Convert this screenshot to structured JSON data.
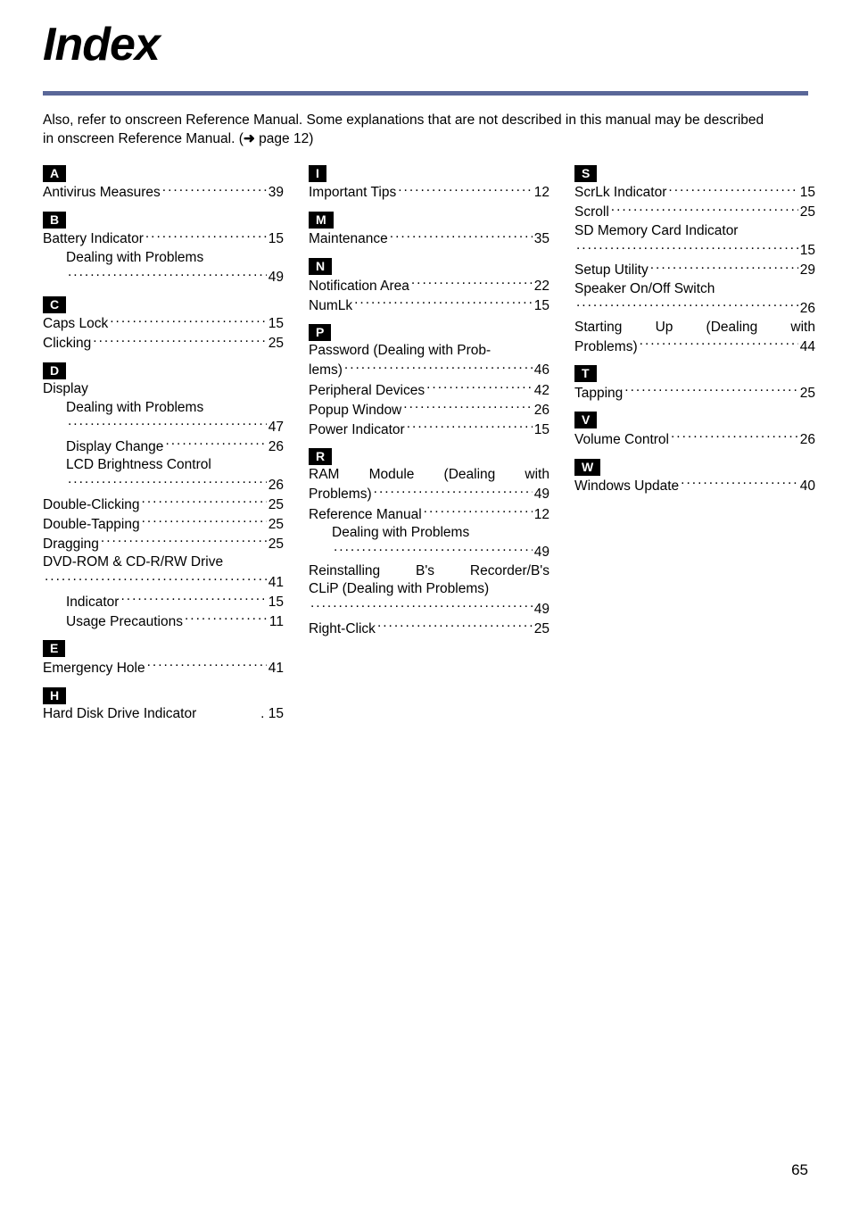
{
  "title": "Index",
  "intro_line1": "Also, refer to onscreen Reference Manual. Some explanations that are not described in this manual may be described",
  "intro_line2_prefix": "in onscreen Reference Manual. (",
  "intro_line2_suffix": " page 12)",
  "page_number": "65",
  "sections": {
    "A": {
      "letter": "A",
      "entries": [
        {
          "text": "Antivirus Measures",
          "page": "39"
        }
      ]
    },
    "B": {
      "letter": "B",
      "entries": [
        {
          "text": "Battery Indicator",
          "page": "15"
        },
        {
          "text": "Dealing with Problems",
          "page": "",
          "sub": true,
          "nopage": true
        },
        {
          "text": "",
          "page": "49",
          "sub": true,
          "contline": true
        }
      ]
    },
    "C": {
      "letter": "C",
      "entries": [
        {
          "text": "Caps Lock",
          "page": "15"
        },
        {
          "text": "Clicking",
          "page": "25"
        }
      ]
    },
    "D": {
      "letter": "D",
      "entries": [
        {
          "text": "Display",
          "page": "",
          "nopage": true
        },
        {
          "text": "Dealing with Problems",
          "page": "",
          "sub": true,
          "nopage": true
        },
        {
          "text": "",
          "page": "47",
          "sub": true,
          "contline": true
        },
        {
          "text": "Display Change",
          "page": "26",
          "sub": true
        },
        {
          "text": "LCD Brightness Control",
          "page": "",
          "sub": true,
          "nopage": true
        },
        {
          "text": "",
          "page": "26",
          "sub": true,
          "contline": true
        },
        {
          "text": "Double-Clicking",
          "page": "25"
        },
        {
          "text": "Double-Tapping",
          "page": "25"
        },
        {
          "text": "Dragging",
          "page": "25"
        },
        {
          "text": "DVD-ROM & CD-R/RW Drive",
          "page": "",
          "nopage": true
        },
        {
          "text": "",
          "page": "41",
          "contline": true
        },
        {
          "text": "Indicator",
          "page": "15",
          "sub": true
        },
        {
          "text": "Usage Precautions",
          "page": "11",
          "sub": true
        }
      ]
    },
    "E": {
      "letter": "E",
      "entries": [
        {
          "text": "Emergency Hole",
          "page": "41"
        }
      ]
    },
    "H": {
      "letter": "H",
      "entries": [
        {
          "text": "Hard Disk Drive Indicator",
          "page": "15",
          "tight": true
        }
      ]
    },
    "I": {
      "letter": "I",
      "entries": [
        {
          "text": "Important Tips",
          "page": "12"
        }
      ]
    },
    "M": {
      "letter": "M",
      "entries": [
        {
          "text": "Maintenance",
          "page": "35"
        }
      ]
    },
    "N": {
      "letter": "N",
      "entries": [
        {
          "text": "Notification Area",
          "page": "22"
        },
        {
          "text": "NumLk",
          "page": "15"
        }
      ]
    },
    "P": {
      "letter": "P",
      "entries": [
        {
          "text": "Password (Dealing with Prob-",
          "page": "",
          "nopage": true
        },
        {
          "text": "lems)",
          "page": "46"
        },
        {
          "text": "Peripheral Devices",
          "page": "42"
        },
        {
          "text": "Popup Window",
          "page": "26"
        },
        {
          "text": "Power Indicator",
          "page": "15"
        }
      ]
    },
    "R": {
      "letter": "R",
      "entries": [
        {
          "text": "RAM Module (Dealing with",
          "page": "",
          "nopage": true,
          "justify": true
        },
        {
          "text": "Problems)",
          "page": "49"
        },
        {
          "text": "Reference Manual",
          "page": "12"
        },
        {
          "text": "Dealing with Problems",
          "page": "",
          "sub": true,
          "nopage": true
        },
        {
          "text": "",
          "page": "49",
          "sub": true,
          "contline": true
        },
        {
          "text": "Reinstalling B's Recorder/B's",
          "page": "",
          "nopage": true,
          "justify": true
        },
        {
          "text": "CLiP (Dealing with Problems)",
          "page": "",
          "nopage": true
        },
        {
          "text": "",
          "page": "49",
          "contline": true
        },
        {
          "text": "Right-Click",
          "page": "25"
        }
      ]
    },
    "S": {
      "letter": "S",
      "entries": [
        {
          "text": "ScrLk Indicator",
          "page": "15"
        },
        {
          "text": "Scroll",
          "page": "25"
        },
        {
          "text": "SD Memory Card Indicator",
          "page": "",
          "nopage": true
        },
        {
          "text": "",
          "page": "15",
          "contline": true
        },
        {
          "text": "Setup Utility",
          "page": "29"
        },
        {
          "text": "Speaker On/Off Switch",
          "page": "",
          "nopage": true
        },
        {
          "text": "",
          "page": "26",
          "contline": true
        },
        {
          "text": "Starting Up (Dealing with",
          "page": "",
          "nopage": true,
          "justify": true
        },
        {
          "text": "Problems)",
          "page": "44"
        }
      ]
    },
    "T": {
      "letter": "T",
      "entries": [
        {
          "text": "Tapping",
          "page": "25"
        }
      ]
    },
    "V": {
      "letter": "V",
      "entries": [
        {
          "text": "Volume Control",
          "page": "26"
        }
      ]
    },
    "W": {
      "letter": "W",
      "entries": [
        {
          "text": "Windows Update",
          "page": "40"
        }
      ]
    }
  },
  "column_layout": [
    [
      "A",
      "B",
      "C",
      "D",
      "E",
      "H"
    ],
    [
      "I",
      "M",
      "N",
      "P",
      "R"
    ],
    [
      "S",
      "T",
      "V",
      "W"
    ]
  ],
  "styling": {
    "page_bg": "#ffffff",
    "text_color": "#000000",
    "underline_color": "#5a6798",
    "badge_bg": "#000000",
    "badge_text": "#ffffff",
    "title_fontsize": 52,
    "body_fontsize": 15.5,
    "pagenum_fontsize": 17
  }
}
